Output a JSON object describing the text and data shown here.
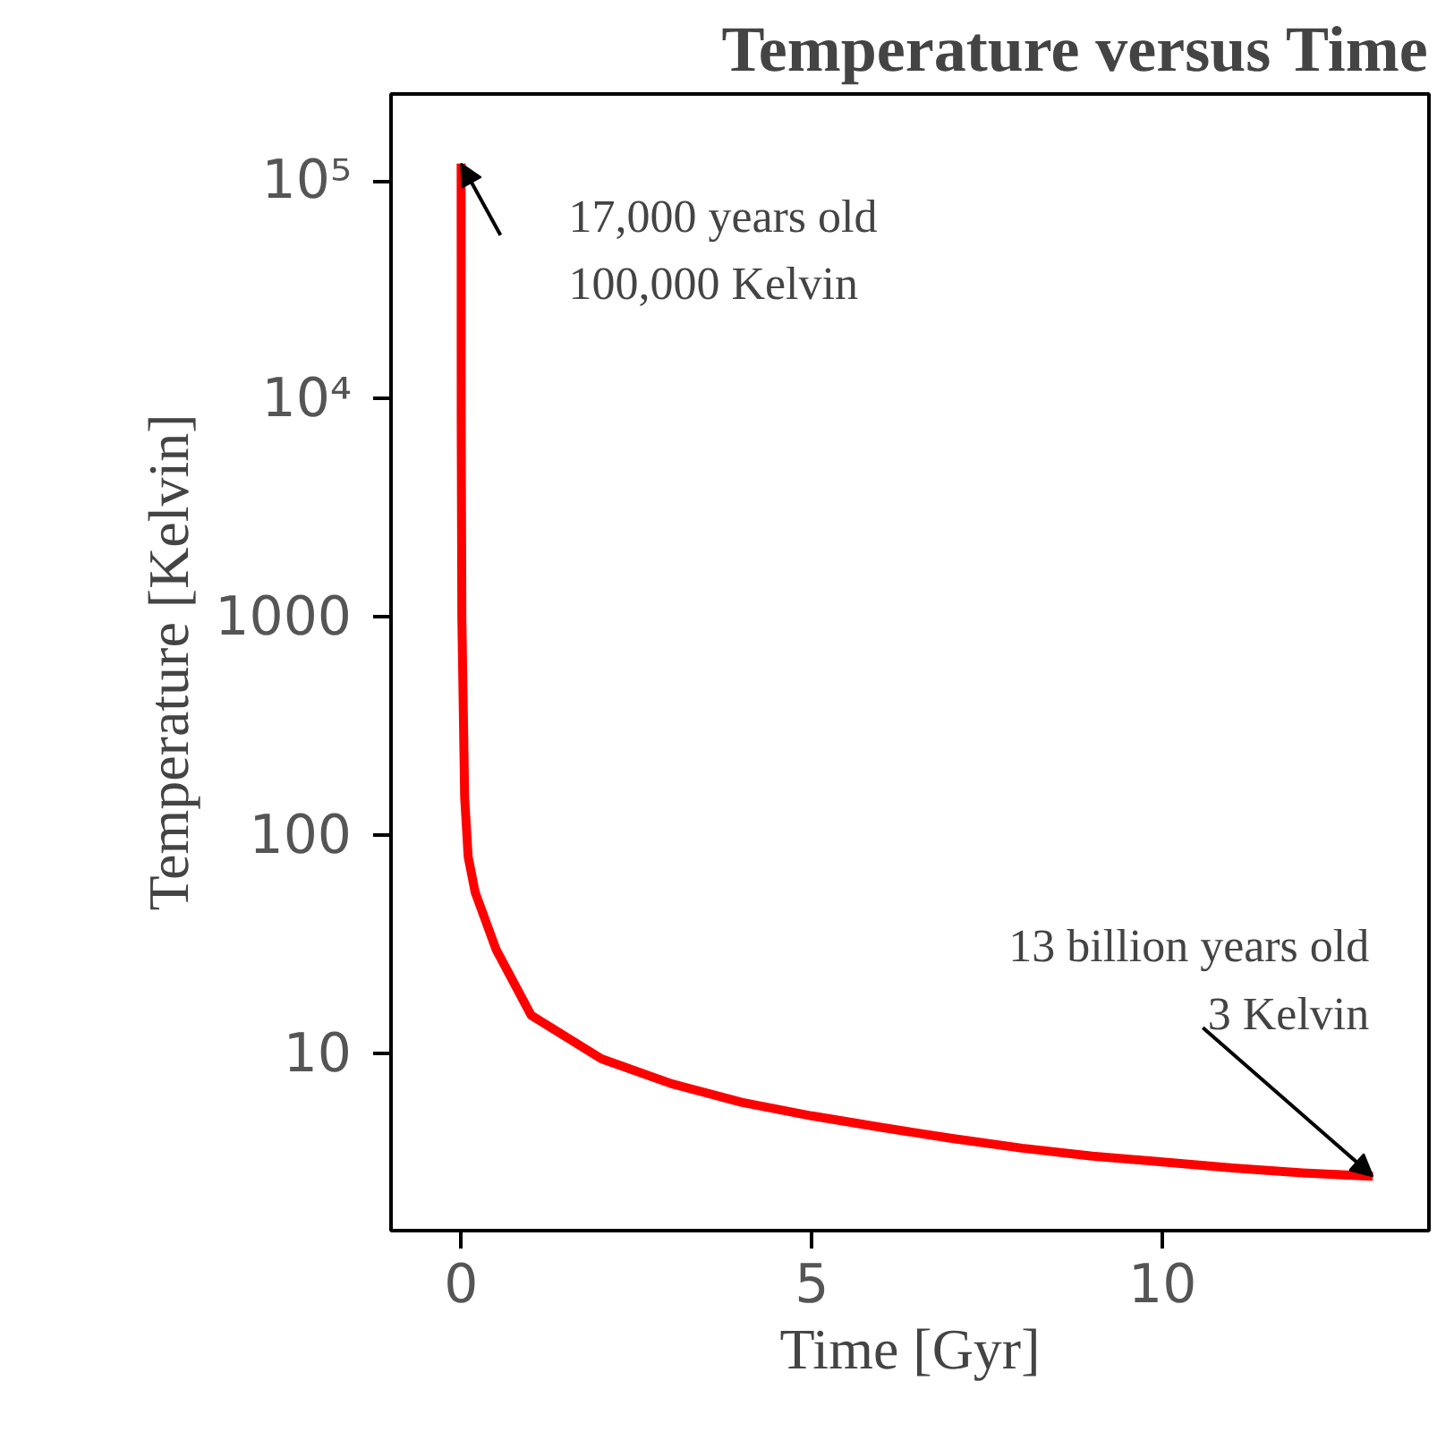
{
  "chart_data": {
    "type": "line",
    "title": "Temperature versus Time",
    "xlabel": "Time [Gyr]",
    "ylabel": "Temperature [Kelvin]",
    "x": [
      1.7e-05,
      0.001,
      0.01,
      0.05,
      0.1,
      0.2,
      0.5,
      1,
      2,
      3,
      4,
      5,
      6,
      7,
      8,
      9,
      10,
      11,
      12,
      13
    ],
    "series": [
      {
        "color": "#ff0000",
        "values": [
          120000,
          8000,
          1000,
          150,
          80,
          55,
          30,
          15,
          9.5,
          7.3,
          6,
          5.2,
          4.6,
          4.1,
          3.7,
          3.4,
          3.2,
          3.0,
          2.85,
          2.75
        ]
      }
    ],
    "log": "y",
    "xlim": [
      -1,
      13.8
    ],
    "ylim": [
      1.55,
      250000
    ],
    "xticks": [
      0,
      5,
      10
    ],
    "yticks": [
      {
        "value": 10,
        "label": "10"
      },
      {
        "value": 100,
        "label": "100"
      },
      {
        "value": 1000,
        "label": "1000"
      },
      {
        "value": 10000,
        "label": "10⁴"
      },
      {
        "value": 100000,
        "label": "10⁵"
      }
    ],
    "grid": false,
    "marker": "none",
    "line_style": "solid",
    "annotations": [
      {
        "text": "17,000 years old\n100,000 Kelvin",
        "x": 1.7e-05,
        "y": 120000
      },
      {
        "text": "13 billion years old\n3 Kelvin",
        "x": 13,
        "y": 2.75
      }
    ]
  }
}
